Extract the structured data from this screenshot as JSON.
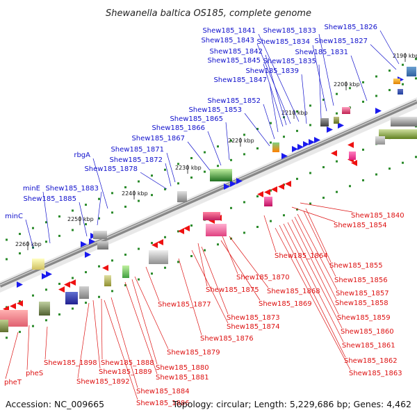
{
  "title": "Shewanella baltica OS185, complete genome",
  "footer": {
    "accession": "Accession: NC_009665",
    "summary": "Topology: circular; Length: 5,229,686 bp; Genes: 4,462"
  },
  "colors": {
    "forward_label": "#1010cc",
    "reverse_label": "#dd1111",
    "forward_gene": "#1a1aee",
    "reverse_gene": "#ee1111",
    "backbone": "#888888"
  },
  "kbp_ticks": [
    "2190 kbp",
    "2200 kbp",
    "2210 kbp",
    "2220 kbp",
    "2230 kbp",
    "2240 kbp",
    "2250 kbp",
    "2260 kbp"
  ],
  "forward_labels": [
    "Shew185_1826",
    "Shew185_1827",
    "Shew185_1831",
    "Shew185_1833",
    "Shew185_1834",
    "Shew185_1835",
    "Shew185_1839",
    "Shew185_1841",
    "Shew185_1843",
    "Shew185_1842",
    "Shew185_1845",
    "Shew185_1847",
    "Shew185_1852",
    "Shew185_1853",
    "Shew185_1865",
    "Shew185_1866",
    "Shew185_1867",
    "Shew185_1871",
    "Shew185_1872",
    "Shew185_1878",
    "rbgA",
    "Shew185_1883",
    "Shew185_1885",
    "minE",
    "minC"
  ],
  "reverse_labels": [
    "Shew185_1840",
    "Shew185_1854",
    "Shew185_1864",
    "Shew185_1855",
    "Shew185_1856",
    "Shew185_1857",
    "Shew185_1858",
    "Shew185_1859",
    "Shew185_1860",
    "Shew185_1861",
    "Shew185_1862",
    "Shew185_1863",
    "Shew185_1870",
    "Shew185_1875",
    "Shew185_1868",
    "Shew185_1869",
    "Shew185_1877",
    "Shew185_1873",
    "Shew185_1874",
    "Shew185_1876",
    "Shew185_1879",
    "Shew185_1880",
    "Shew185_1881",
    "Shew185_1888",
    "Shew185_1889",
    "Shew185_1892",
    "Shew185_1884",
    "Shew185_1886",
    "Shew185_1898",
    "pheS",
    "pheT"
  ]
}
